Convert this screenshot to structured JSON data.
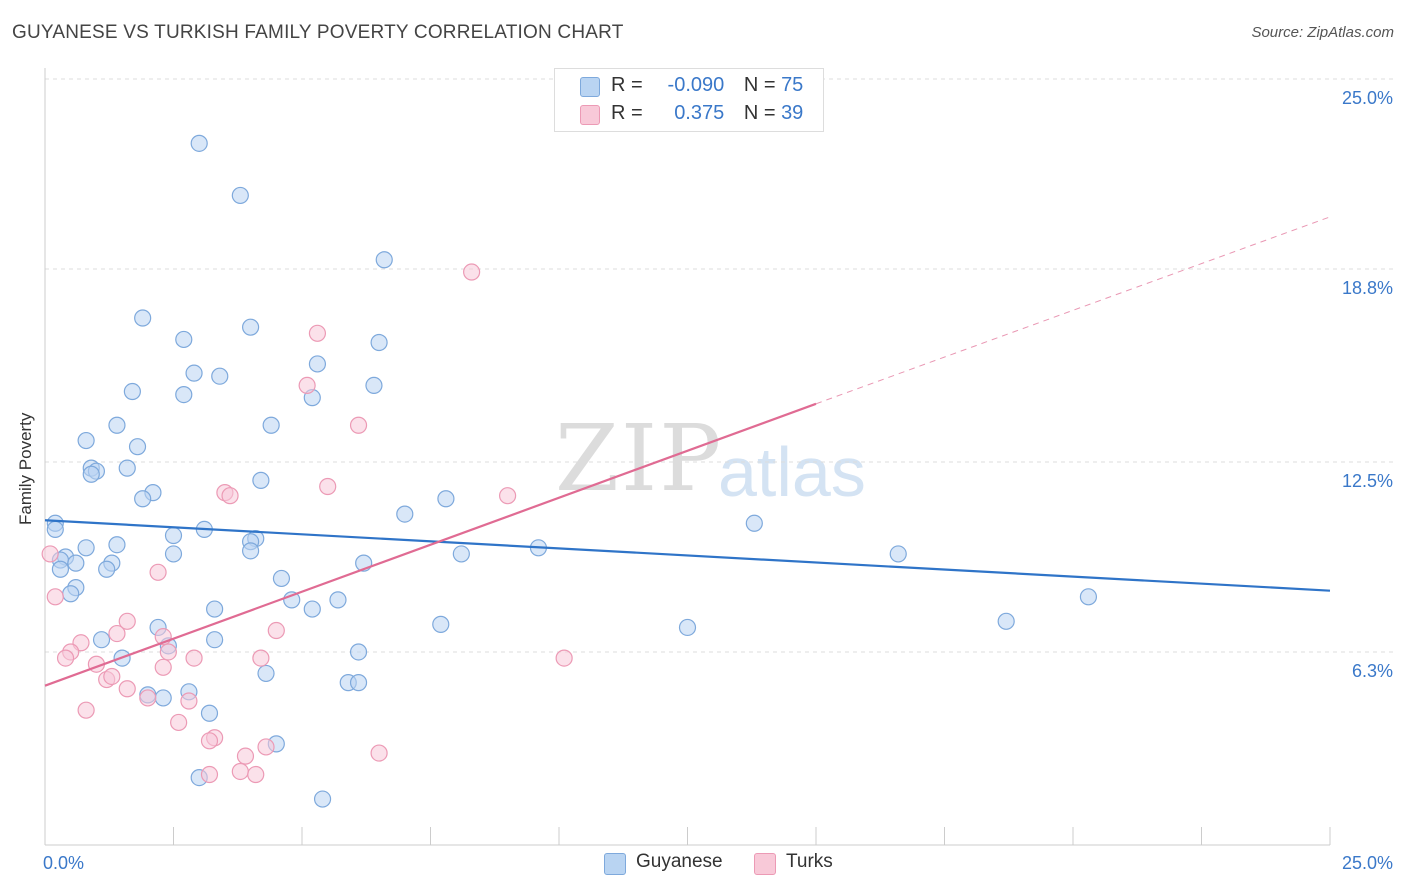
{
  "title": "GUYANESE VS TURKISH FAMILY POVERTY CORRELATION CHART",
  "source": "Source: ZipAtlas.com",
  "watermark": {
    "zip": "ZIP",
    "atlas": "atlas"
  },
  "legend": {
    "guyanese": {
      "r_label": "R =",
      "r_value": "-0.090",
      "n_label": "N =",
      "n_value": "75"
    },
    "turks": {
      "r_label": "R =",
      "r_value": "0.375",
      "n_label": "N =",
      "n_value": "39"
    }
  },
  "bottom_legend": {
    "guyanese": "Guyanese",
    "turks": "Turks"
  },
  "colors": {
    "guyanese_fill": "#b9d4f2",
    "guyanese_stroke": "#7ea9dc",
    "guyanese_line": "#2f74c8",
    "turks_fill": "#f8c9d8",
    "turks_stroke": "#ec9ab5",
    "turks_line": "#e06b93",
    "tick_text": "#3a78c9",
    "grid": "#dddddd"
  },
  "chart_data": {
    "type": "scatter",
    "xlabel": "",
    "ylabel": "Family Poverty",
    "xlim": [
      0,
      25
    ],
    "ylim": [
      0,
      25
    ],
    "x_tick_labels": [
      "0.0%",
      "25.0%"
    ],
    "y_ticks": [
      {
        "value": 6.3,
        "label": "6.3%"
      },
      {
        "value": 12.5,
        "label": "12.5%"
      },
      {
        "value": 18.8,
        "label": "18.8%"
      },
      {
        "value": 25.0,
        "label": "25.0%"
      }
    ],
    "grid": true,
    "series": [
      {
        "name": "Guyanese",
        "r": -0.09,
        "n": 75,
        "trend": {
          "x": [
            0,
            25
          ],
          "y": [
            10.6,
            8.3
          ]
        },
        "points": [
          [
            3.0,
            22.9
          ],
          [
            3.8,
            21.2
          ],
          [
            6.6,
            19.1
          ],
          [
            1.9,
            17.2
          ],
          [
            4.0,
            16.9
          ],
          [
            2.7,
            16.5
          ],
          [
            6.5,
            16.4
          ],
          [
            5.3,
            15.7
          ],
          [
            2.9,
            15.4
          ],
          [
            3.4,
            15.3
          ],
          [
            6.4,
            15.0
          ],
          [
            1.7,
            14.8
          ],
          [
            2.7,
            14.7
          ],
          [
            5.2,
            14.6
          ],
          [
            1.4,
            13.7
          ],
          [
            4.4,
            13.7
          ],
          [
            0.8,
            13.2
          ],
          [
            1.8,
            13.0
          ],
          [
            0.9,
            12.3
          ],
          [
            1.0,
            12.2
          ],
          [
            1.6,
            12.3
          ],
          [
            0.9,
            12.1
          ],
          [
            4.2,
            11.9
          ],
          [
            2.1,
            11.5
          ],
          [
            7.8,
            11.3
          ],
          [
            1.9,
            11.3
          ],
          [
            7.0,
            10.8
          ],
          [
            0.2,
            10.5
          ],
          [
            0.2,
            10.3
          ],
          [
            3.1,
            10.3
          ],
          [
            2.5,
            10.1
          ],
          [
            13.8,
            10.5
          ],
          [
            4.1,
            10.0
          ],
          [
            4.0,
            9.9
          ],
          [
            1.4,
            9.8
          ],
          [
            0.8,
            9.7
          ],
          [
            9.6,
            9.7
          ],
          [
            8.1,
            9.5
          ],
          [
            2.5,
            9.5
          ],
          [
            4.0,
            9.6
          ],
          [
            16.6,
            9.5
          ],
          [
            0.4,
            9.4
          ],
          [
            0.3,
            9.3
          ],
          [
            1.3,
            9.2
          ],
          [
            0.6,
            9.2
          ],
          [
            6.2,
            9.2
          ],
          [
            1.2,
            9.0
          ],
          [
            0.3,
            9.0
          ],
          [
            4.6,
            8.7
          ],
          [
            0.6,
            8.4
          ],
          [
            0.5,
            8.2
          ],
          [
            20.3,
            8.1
          ],
          [
            4.8,
            8.0
          ],
          [
            5.7,
            8.0
          ],
          [
            3.3,
            7.7
          ],
          [
            5.2,
            7.7
          ],
          [
            18.7,
            7.3
          ],
          [
            7.7,
            7.2
          ],
          [
            12.5,
            7.1
          ],
          [
            2.2,
            7.1
          ],
          [
            1.1,
            6.7
          ],
          [
            3.3,
            6.7
          ],
          [
            2.4,
            6.5
          ],
          [
            6.1,
            6.3
          ],
          [
            1.5,
            6.1
          ],
          [
            4.3,
            5.6
          ],
          [
            5.9,
            5.3
          ],
          [
            6.1,
            5.3
          ],
          [
            2.8,
            5.0
          ],
          [
            2.0,
            4.9
          ],
          [
            2.3,
            4.8
          ],
          [
            3.2,
            4.3
          ],
          [
            4.5,
            3.3
          ],
          [
            3.0,
            2.2
          ],
          [
            5.4,
            1.5
          ]
        ]
      },
      {
        "name": "Turks",
        "r": 0.375,
        "n": 39,
        "trend": {
          "x": [
            0,
            15
          ],
          "y": [
            5.2,
            14.4
          ]
        },
        "trend_extension": {
          "x": [
            15,
            25
          ],
          "y": [
            14.4,
            20.5
          ]
        },
        "points": [
          [
            8.3,
            18.7
          ],
          [
            5.3,
            16.7
          ],
          [
            5.1,
            15.0
          ],
          [
            6.1,
            13.7
          ],
          [
            3.5,
            11.5
          ],
          [
            3.6,
            11.4
          ],
          [
            5.5,
            11.7
          ],
          [
            9.0,
            11.4
          ],
          [
            0.1,
            9.5
          ],
          [
            2.2,
            8.9
          ],
          [
            0.2,
            8.1
          ],
          [
            1.6,
            7.3
          ],
          [
            4.5,
            7.0
          ],
          [
            1.4,
            6.9
          ],
          [
            2.3,
            6.8
          ],
          [
            0.7,
            6.6
          ],
          [
            0.5,
            6.3
          ],
          [
            2.4,
            6.3
          ],
          [
            0.4,
            6.1
          ],
          [
            2.9,
            6.1
          ],
          [
            4.2,
            6.1
          ],
          [
            10.1,
            6.1
          ],
          [
            1.0,
            5.9
          ],
          [
            2.3,
            5.8
          ],
          [
            1.2,
            5.4
          ],
          [
            1.3,
            5.5
          ],
          [
            1.6,
            5.1
          ],
          [
            2.0,
            4.8
          ],
          [
            2.8,
            4.7
          ],
          [
            0.8,
            4.4
          ],
          [
            2.6,
            4.0
          ],
          [
            3.3,
            3.5
          ],
          [
            3.2,
            3.4
          ],
          [
            4.3,
            3.2
          ],
          [
            6.5,
            3.0
          ],
          [
            3.9,
            2.9
          ],
          [
            3.2,
            2.3
          ],
          [
            3.8,
            2.4
          ],
          [
            4.1,
            2.3
          ]
        ]
      }
    ]
  }
}
